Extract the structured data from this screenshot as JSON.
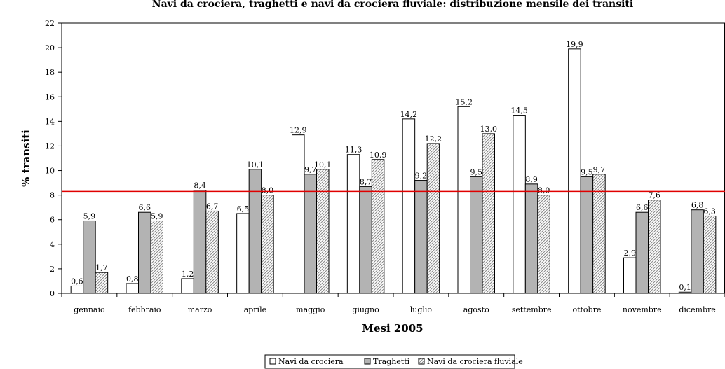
{
  "chart_data": {
    "type": "bar",
    "title": "Navi da crociera, traghetti e navi da crociera fluviale: distribuzione mensile dei transiti",
    "xlabel": "Mesi 2005",
    "ylabel": "% transiti",
    "ylim": [
      0,
      22
    ],
    "yticks": [
      "0",
      "2",
      "4",
      "6",
      "8",
      "10",
      "12",
      "14",
      "16",
      "18",
      "20",
      "22"
    ],
    "categories": [
      "gennaio",
      "febbraio",
      "marzo",
      "aprile",
      "maggio",
      "giugno",
      "luglio",
      "agosto",
      "settembre",
      "ottobre",
      "novembre",
      "dicembre"
    ],
    "series": [
      {
        "name": "Navi da crociera",
        "values": [
          0.6,
          0.8,
          1.2,
          6.5,
          12.9,
          11.3,
          14.2,
          15.2,
          14.5,
          19.9,
          2.9,
          0.1
        ],
        "labels": [
          "0,6",
          "0,8",
          "1,2",
          "6,5",
          "12,9",
          "11,3",
          "14,2",
          "15,2",
          "14,5",
          "19,9",
          "2,9",
          "0,1"
        ],
        "fill": "#ffffff"
      },
      {
        "name": "Traghetti",
        "values": [
          5.9,
          6.6,
          8.4,
          10.1,
          9.7,
          8.7,
          9.2,
          9.5,
          8.9,
          9.5,
          6.6,
          6.8
        ],
        "labels": [
          "5,9",
          "6,6",
          "8,4",
          "10,1",
          "9,7",
          "8,7",
          "9,2",
          "9,5",
          "8,9",
          "9,5",
          "6,6",
          "6,8"
        ],
        "fill": "#b3b3b3"
      },
      {
        "name": "Navi da crociera fluviale",
        "values": [
          1.7,
          5.9,
          6.7,
          8.0,
          10.1,
          10.9,
          12.2,
          13.0,
          8.0,
          9.7,
          7.6,
          6.3
        ],
        "labels": [
          "1,7",
          "5,9",
          "6,7",
          "8,0",
          "10,1",
          "10,9",
          "12,2",
          "13,0",
          "8,0",
          "9,7",
          "7,6",
          "6,3"
        ],
        "fill": "pattern"
      }
    ],
    "reference_line": {
      "value": 8.3,
      "color": "#e00000"
    },
    "grid": false,
    "legend_position": "bottom"
  }
}
